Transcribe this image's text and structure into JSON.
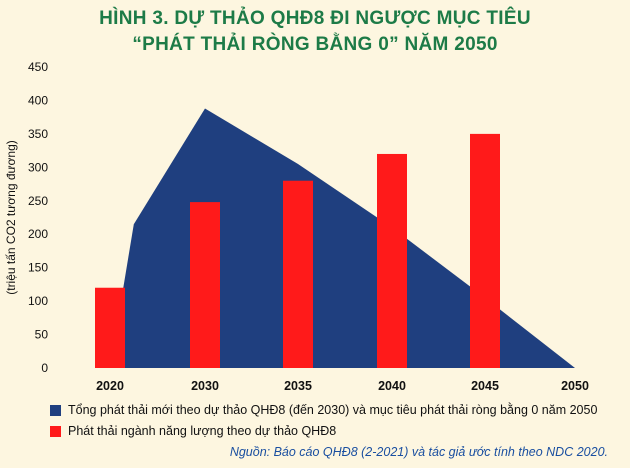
{
  "title_line1": "HÌNH 3. DỰ THẢO QHĐ8 ĐI NGƯỢC MỤC TIÊU",
  "title_line2": "“PHÁT THẢI RÒNG BẰNG 0” NĂM 2050",
  "source": "Nguồn: Báo cáo QHĐ8 (2-2021) và tác giả ước tính theo NDC 2020.",
  "colors": {
    "area": "#1f3f7f",
    "bar": "#ff1a1a",
    "title": "#1d7b47",
    "source": "#1a4fa0"
  },
  "chart_data": {
    "type": "bar",
    "categories": [
      "2020",
      "2030",
      "2035",
      "2040",
      "2045",
      "2050"
    ],
    "ylabel": "(triệu tấn CO2 tương đương)",
    "xlabel": "",
    "ylim": [
      0,
      450
    ],
    "yticks": [
      0,
      50,
      100,
      150,
      200,
      250,
      300,
      350,
      400,
      450
    ],
    "grid": false,
    "legend_position": "bottom",
    "area_series": {
      "name": "Tổng phát thải mới theo dự thảo QHĐ8 (đến 2030) và mục tiêu phát thải ròng bằng 0 năm 2050",
      "x": [
        2020,
        2022.5,
        2030,
        2035,
        2040,
        2045,
        2050
      ],
      "values": [
        0,
        215,
        388,
        305,
        210,
        105,
        0
      ]
    },
    "bar_series": {
      "name": "Phát thải ngành năng lượng theo dự thảo QHĐ8",
      "x": [
        2020,
        2030,
        2035,
        2040,
        2045
      ],
      "values": [
        120,
        248,
        280,
        320,
        350
      ]
    }
  }
}
